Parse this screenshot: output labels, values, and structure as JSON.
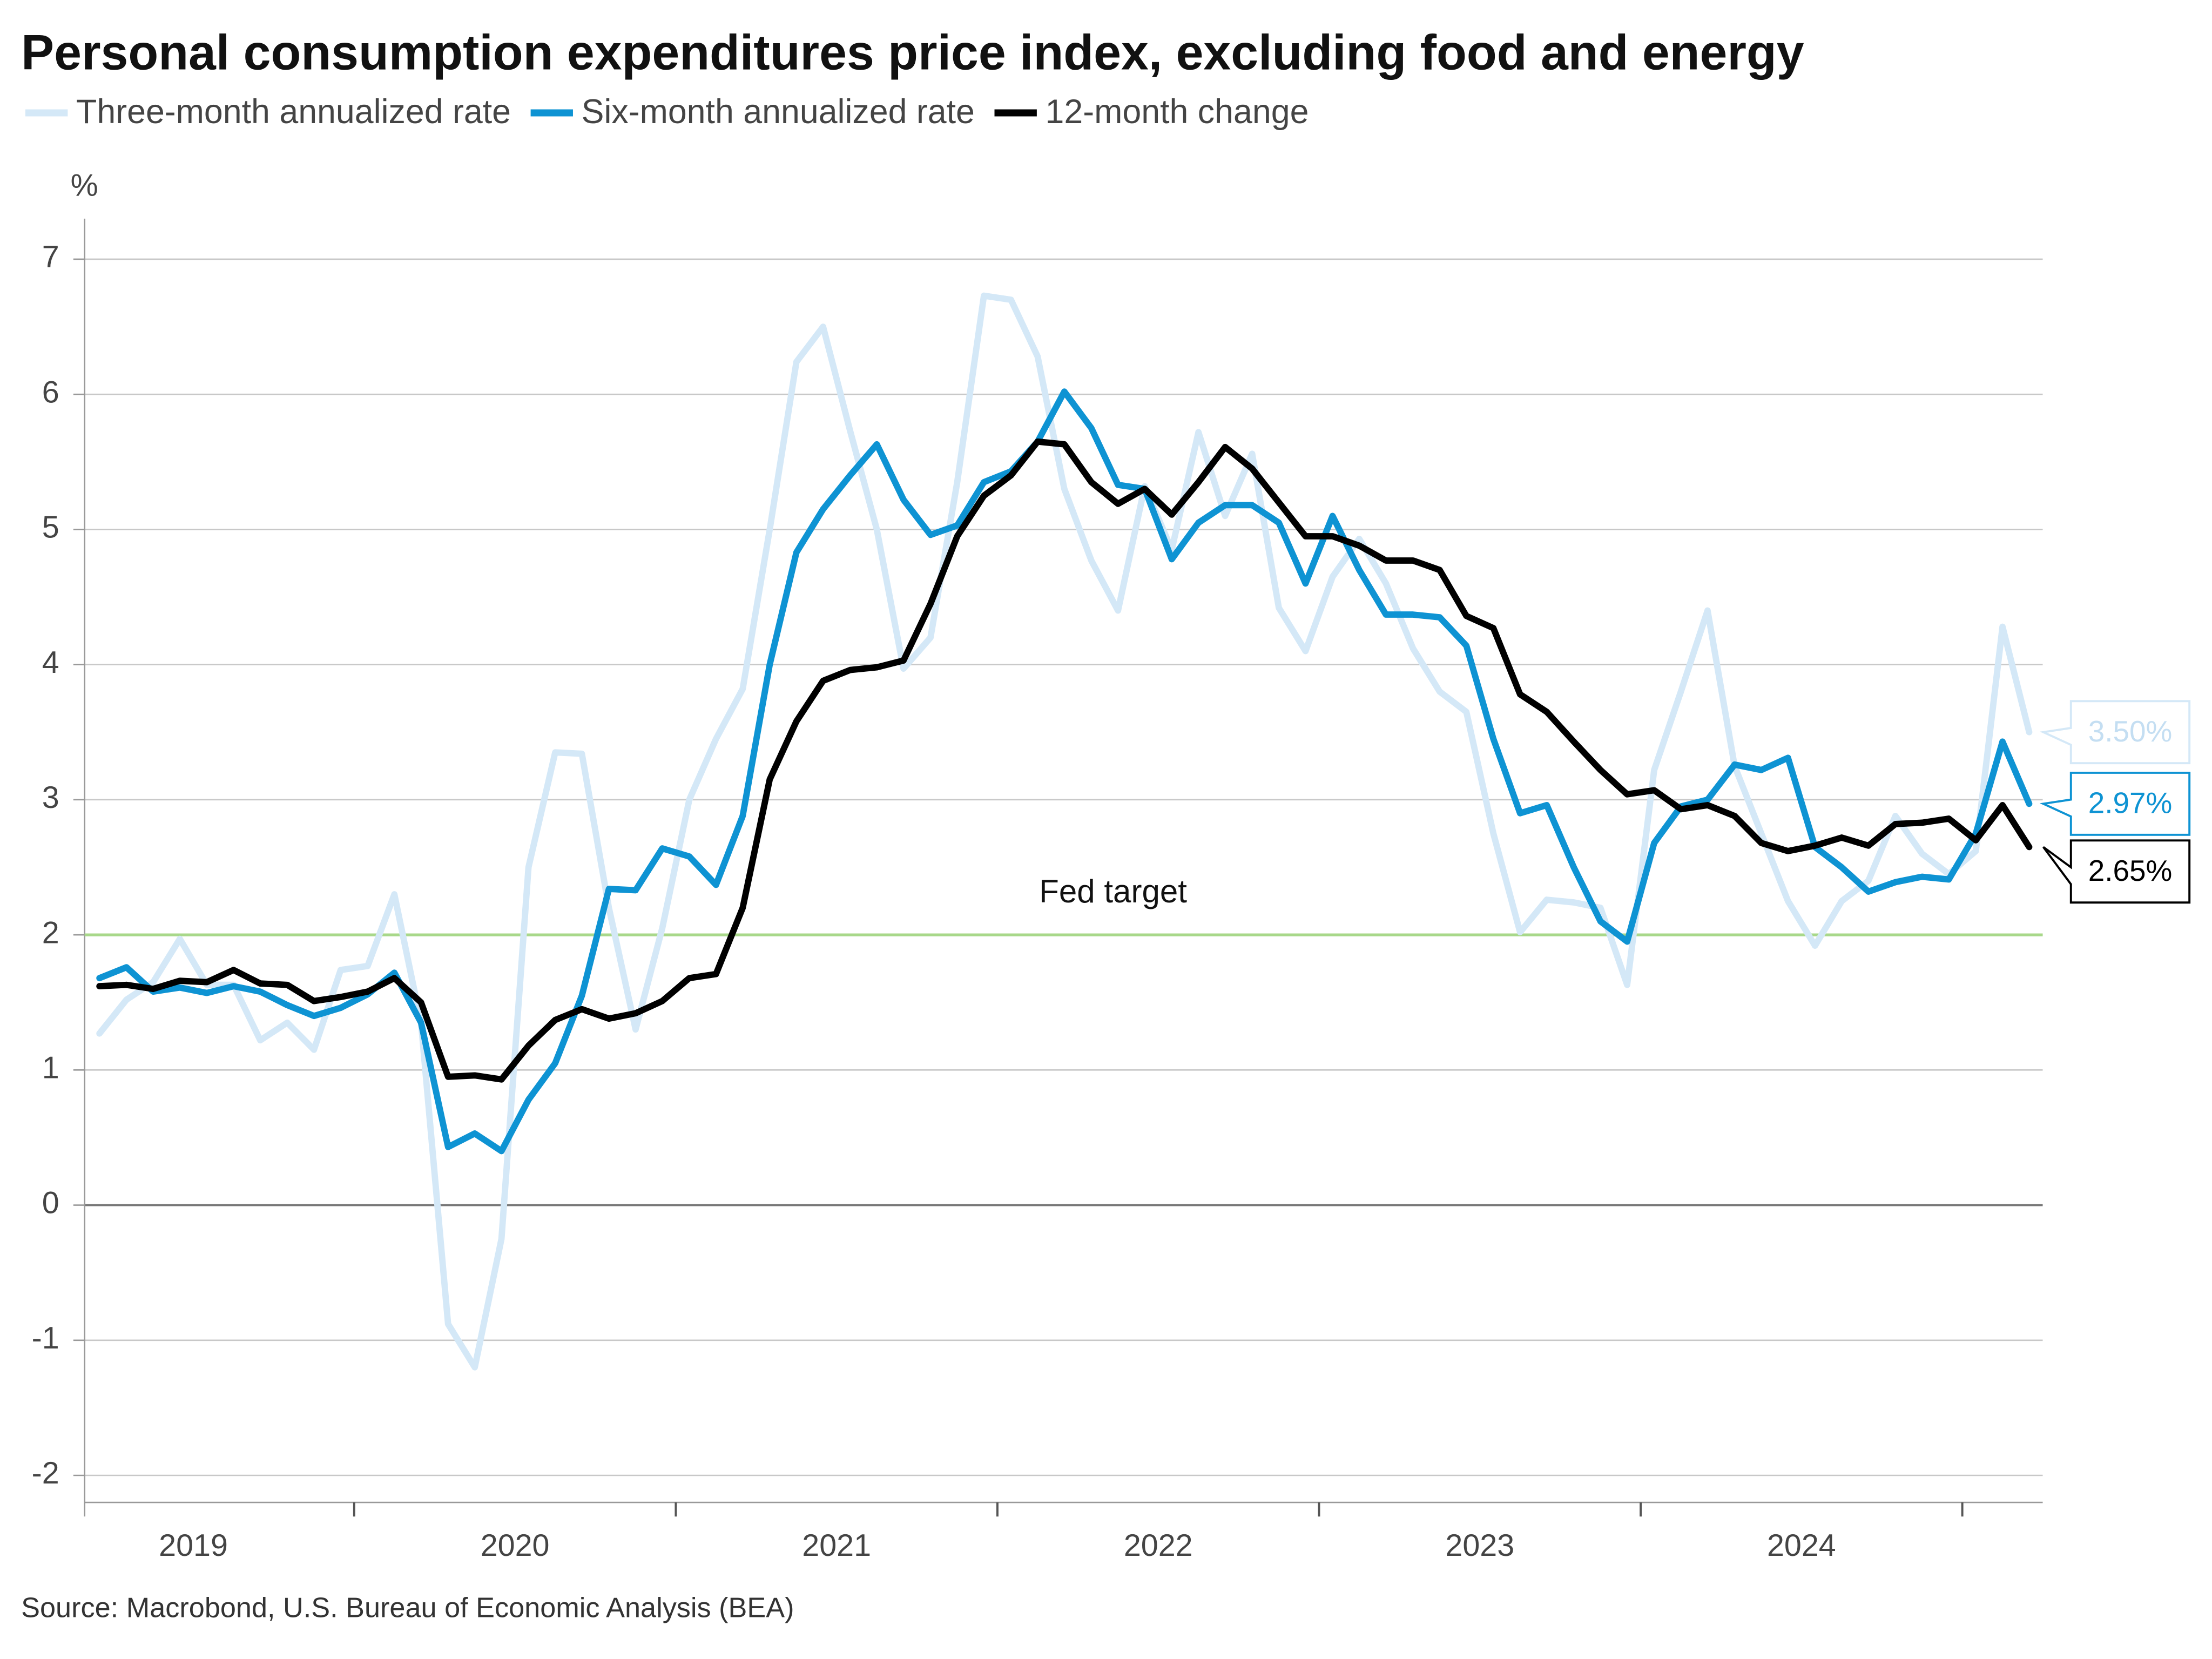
{
  "chart_data": {
    "type": "line",
    "title": "Personal consumption expenditures price index, excluding food and energy",
    "y_label": "%",
    "source": "Source: Macrobond, U.S. Bureau of Economic Analysis (BEA)",
    "annotations": [
      {
        "text": "Fed target",
        "y": 2,
        "color": "#a8d88a"
      }
    ],
    "xlim": [
      2019.162,
      2025.25
    ],
    "xticks": [
      {
        "value": 2019.5,
        "label": "2019"
      },
      {
        "value": 2020.5,
        "label": "2020"
      },
      {
        "value": 2021.5,
        "label": "2021"
      },
      {
        "value": 2022.5,
        "label": "2022"
      },
      {
        "value": 2023.5,
        "label": "2023"
      },
      {
        "value": 2024.5,
        "label": "2024"
      }
    ],
    "ylim": [
      -2.2,
      7.3
    ],
    "yticks": [
      -2,
      -1,
      0,
      1,
      2,
      3,
      4,
      5,
      6,
      7
    ],
    "grid": true,
    "x": [
      2019.208,
      2019.292,
      2019.375,
      2019.458,
      2019.542,
      2019.625,
      2019.708,
      2019.792,
      2019.875,
      2019.958,
      2020.042,
      2020.125,
      2020.208,
      2020.292,
      2020.375,
      2020.458,
      2020.542,
      2020.625,
      2020.708,
      2020.792,
      2020.875,
      2020.958,
      2021.042,
      2021.125,
      2021.208,
      2021.292,
      2021.375,
      2021.458,
      2021.542,
      2021.625,
      2021.708,
      2021.792,
      2021.875,
      2021.958,
      2022.042,
      2022.125,
      2022.208,
      2022.292,
      2022.375,
      2022.458,
      2022.542,
      2022.625,
      2022.708,
      2022.792,
      2022.875,
      2022.958,
      2023.042,
      2023.125,
      2023.208,
      2023.292,
      2023.375,
      2023.458,
      2023.542,
      2023.625,
      2023.708,
      2023.792,
      2023.875,
      2023.958,
      2024.042,
      2024.125,
      2024.208,
      2024.292,
      2024.375,
      2024.458,
      2024.542,
      2024.625,
      2024.708,
      2024.792,
      2024.875,
      2024.958,
      2025.042,
      2025.125,
      2025.208
    ],
    "series": [
      {
        "name": "Three-month annualized rate",
        "color": "#d4e8f7",
        "end_label": "3.50%",
        "values": [
          1.27,
          1.52,
          1.65,
          1.97,
          1.63,
          1.63,
          1.22,
          1.35,
          1.15,
          1.74,
          1.77,
          2.3,
          1.35,
          -0.88,
          -1.2,
          -0.25,
          2.5,
          3.35,
          3.34,
          2.2,
          1.3,
          2.05,
          3.0,
          3.45,
          3.82,
          5.0,
          6.24,
          6.5,
          5.73,
          5.0,
          3.97,
          4.2,
          5.35,
          6.73,
          6.7,
          6.28,
          5.3,
          4.77,
          4.4,
          5.32,
          4.85,
          5.72,
          5.1,
          5.56,
          4.42,
          4.1,
          4.65,
          4.93,
          4.6,
          4.12,
          3.8,
          3.65,
          2.75,
          2.02,
          2.26,
          2.24,
          2.2,
          1.63,
          3.22,
          3.8,
          4.4,
          3.25,
          2.75,
          2.25,
          1.92,
          2.25,
          2.4,
          2.88,
          2.6,
          2.45,
          2.62,
          4.28,
          3.5
        ]
      },
      {
        "name": "Six-month annualized rate",
        "color": "#0e93d3",
        "end_label": "2.97%",
        "values": [
          1.68,
          1.76,
          1.58,
          1.61,
          1.57,
          1.62,
          1.58,
          1.48,
          1.4,
          1.46,
          1.56,
          1.72,
          1.35,
          0.43,
          0.53,
          0.4,
          0.78,
          1.05,
          1.55,
          2.34,
          2.33,
          2.64,
          2.58,
          2.37,
          2.88,
          4.0,
          4.83,
          5.15,
          5.4,
          5.63,
          5.22,
          4.96,
          5.03,
          5.35,
          5.43,
          5.65,
          6.02,
          5.75,
          5.33,
          5.3,
          4.78,
          5.05,
          5.18,
          5.18,
          5.05,
          4.6,
          5.1,
          4.7,
          4.37,
          4.37,
          4.35,
          4.14,
          3.45,
          2.9,
          2.96,
          2.5,
          2.1,
          1.95,
          2.68,
          2.95,
          3.0,
          3.26,
          3.22,
          3.31,
          2.65,
          2.5,
          2.32,
          2.39,
          2.43,
          2.41,
          2.75,
          3.43,
          2.97
        ]
      },
      {
        "name": "12-month change",
        "color": "#000000",
        "end_label": "2.65%",
        "values": [
          1.62,
          1.63,
          1.6,
          1.66,
          1.65,
          1.74,
          1.64,
          1.63,
          1.51,
          1.54,
          1.58,
          1.68,
          1.5,
          0.95,
          0.96,
          0.93,
          1.18,
          1.37,
          1.45,
          1.38,
          1.42,
          1.51,
          1.68,
          1.71,
          2.2,
          3.15,
          3.58,
          3.88,
          3.96,
          3.98,
          4.03,
          4.45,
          4.95,
          5.25,
          5.4,
          5.65,
          5.63,
          5.35,
          5.19,
          5.3,
          5.11,
          5.35,
          5.61,
          5.45,
          5.2,
          4.95,
          4.95,
          4.88,
          4.77,
          4.77,
          4.7,
          4.36,
          4.27,
          3.78,
          3.65,
          3.43,
          3.22,
          3.04,
          3.07,
          2.93,
          2.96,
          2.88,
          2.68,
          2.62,
          2.66,
          2.72,
          2.66,
          2.82,
          2.83,
          2.86,
          2.7,
          2.96,
          2.65
        ]
      }
    ]
  }
}
